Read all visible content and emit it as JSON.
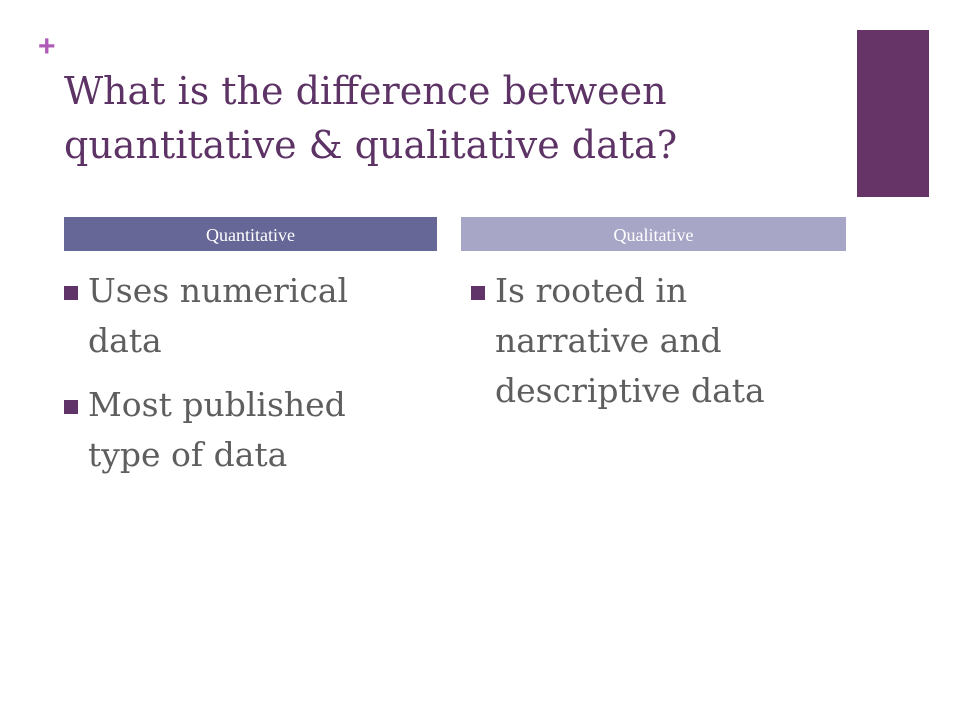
{
  "slide": {
    "plus_mark": "+",
    "title": "What is the difference between quantitative & qualitative data?"
  },
  "columns": [
    {
      "header": "Quantitative",
      "bullets": [
        "Uses numerical data",
        "Most published type of data"
      ]
    },
    {
      "header": "Qualitative",
      "bullets": [
        "Is rooted in narrative and descriptive data"
      ]
    }
  ],
  "colors": {
    "title": "#5d3366",
    "plus_mark": "#b05bb8",
    "corner_bar": "#673468",
    "quantitative_header": "#666697",
    "qualitative_header": "#a7a6c6",
    "bullet_marker": "#603468",
    "body_text": "#5e5e5e"
  }
}
